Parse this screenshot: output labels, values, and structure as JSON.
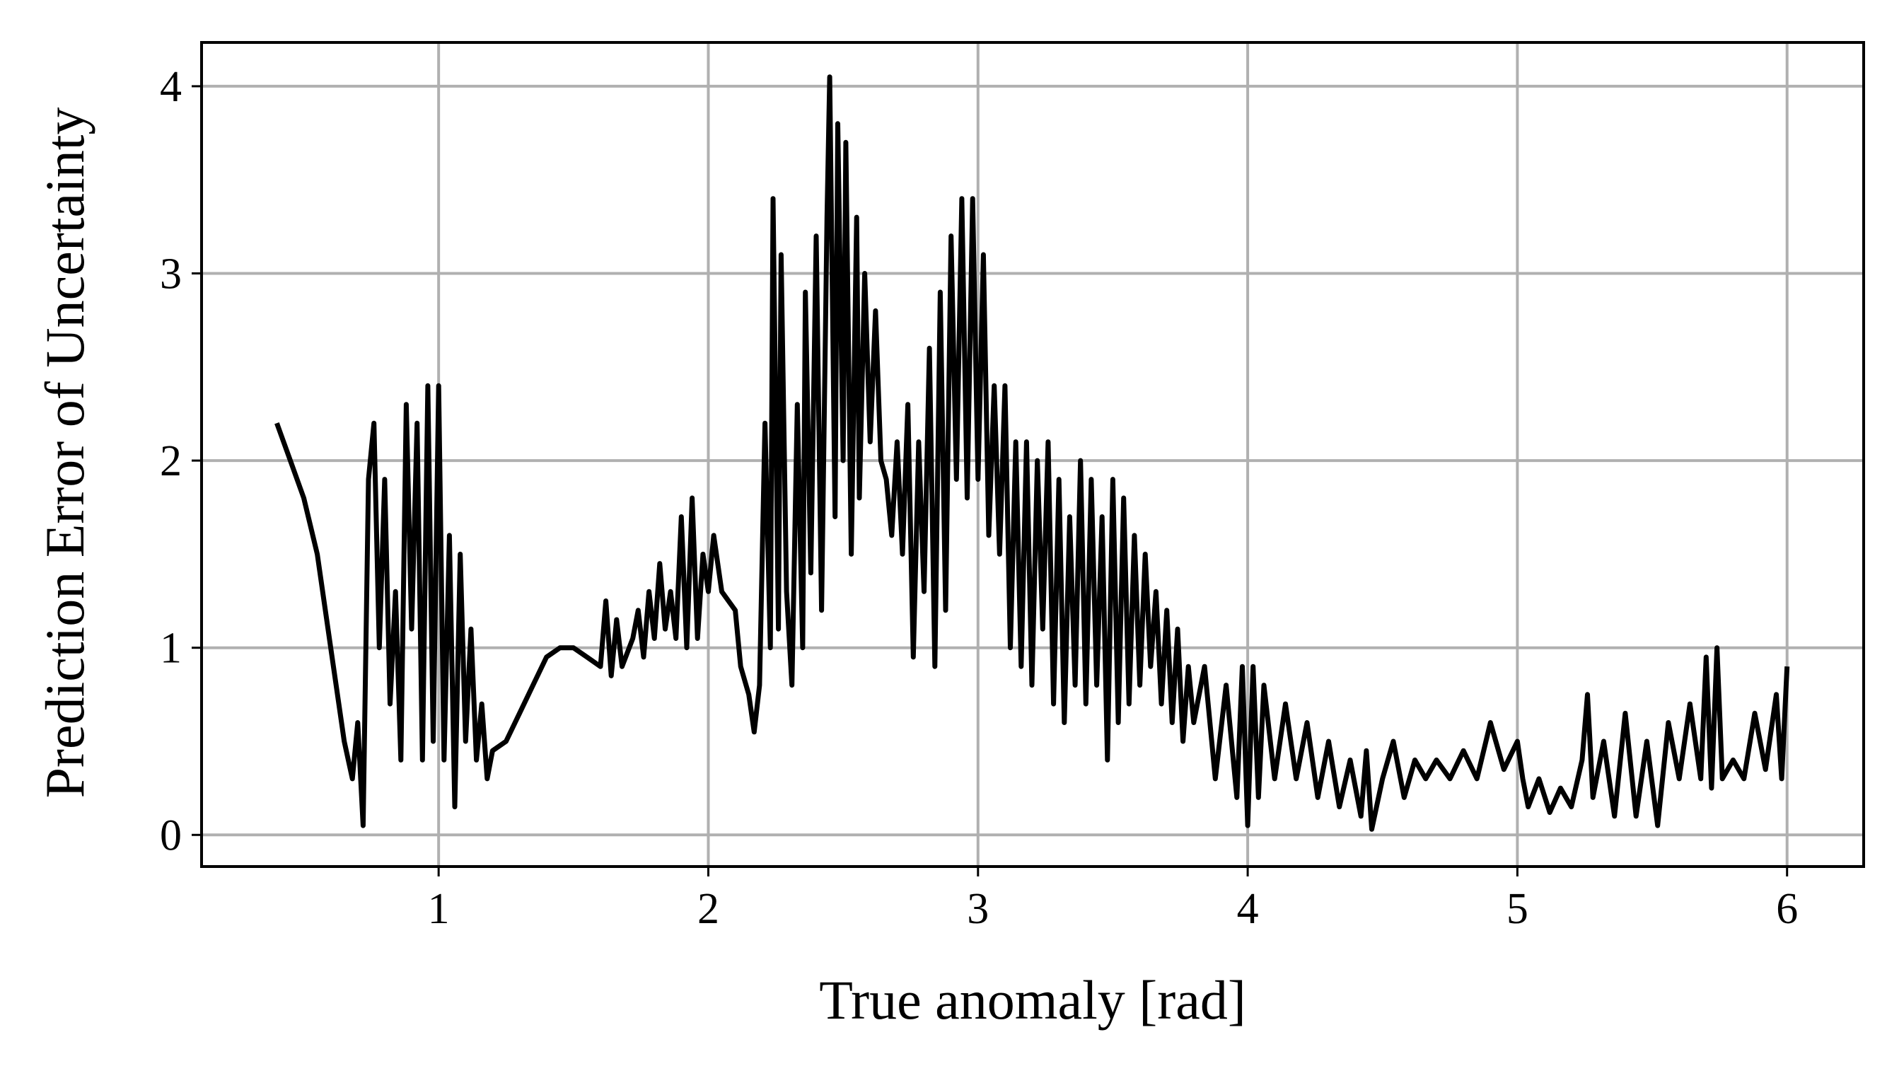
{
  "chart_data": {
    "type": "line",
    "xlabel": "True anomaly [rad]",
    "ylabel": "Prediction Error of Uncertainty",
    "color": "#000000",
    "grid": true,
    "xlim": [
      0.121,
      6.284
    ],
    "ylim": [
      -0.169,
      4.234
    ],
    "xticks": [
      1,
      2,
      3,
      4,
      5,
      6
    ],
    "yticks": [
      0,
      1,
      2,
      3,
      4
    ],
    "x": [
      0.4,
      0.45,
      0.5,
      0.55,
      0.6,
      0.65,
      0.68,
      0.7,
      0.72,
      0.74,
      0.76,
      0.78,
      0.8,
      0.82,
      0.84,
      0.86,
      0.88,
      0.9,
      0.92,
      0.94,
      0.96,
      0.98,
      1.0,
      1.02,
      1.04,
      1.06,
      1.08,
      1.1,
      1.12,
      1.14,
      1.16,
      1.18,
      1.2,
      1.25,
      1.3,
      1.35,
      1.4,
      1.45,
      1.5,
      1.55,
      1.6,
      1.62,
      1.64,
      1.66,
      1.68,
      1.72,
      1.74,
      1.76,
      1.78,
      1.8,
      1.82,
      1.84,
      1.86,
      1.88,
      1.9,
      1.92,
      1.94,
      1.96,
      1.98,
      2.0,
      2.02,
      2.05,
      2.1,
      2.12,
      2.15,
      2.17,
      2.19,
      2.21,
      2.23,
      2.24,
      2.26,
      2.27,
      2.29,
      2.31,
      2.33,
      2.35,
      2.36,
      2.38,
      2.4,
      2.42,
      2.44,
      2.45,
      2.47,
      2.48,
      2.5,
      2.51,
      2.53,
      2.55,
      2.56,
      2.58,
      2.6,
      2.62,
      2.64,
      2.66,
      2.68,
      2.7,
      2.72,
      2.74,
      2.76,
      2.78,
      2.8,
      2.82,
      2.84,
      2.86,
      2.88,
      2.9,
      2.92,
      2.94,
      2.96,
      2.98,
      3.0,
      3.02,
      3.04,
      3.06,
      3.08,
      3.1,
      3.12,
      3.14,
      3.16,
      3.18,
      3.2,
      3.22,
      3.24,
      3.26,
      3.28,
      3.3,
      3.32,
      3.34,
      3.36,
      3.38,
      3.4,
      3.42,
      3.44,
      3.46,
      3.48,
      3.5,
      3.52,
      3.54,
      3.56,
      3.58,
      3.6,
      3.62,
      3.64,
      3.66,
      3.68,
      3.7,
      3.72,
      3.74,
      3.76,
      3.78,
      3.8,
      3.84,
      3.88,
      3.92,
      3.96,
      3.98,
      4.0,
      4.02,
      4.04,
      4.06,
      4.1,
      4.14,
      4.18,
      4.22,
      4.26,
      4.3,
      4.34,
      4.38,
      4.42,
      4.44,
      4.46,
      4.5,
      4.54,
      4.58,
      4.62,
      4.66,
      4.7,
      4.75,
      4.8,
      4.85,
      4.9,
      4.95,
      5.0,
      5.02,
      5.04,
      5.08,
      5.12,
      5.16,
      5.2,
      5.24,
      5.26,
      5.28,
      5.32,
      5.36,
      5.4,
      5.44,
      5.48,
      5.52,
      5.56,
      5.6,
      5.64,
      5.68,
      5.7,
      5.72,
      5.74,
      5.76,
      5.8,
      5.84,
      5.88,
      5.92,
      5.96,
      5.98,
      6.0
    ],
    "values": [
      2.2,
      2.0,
      1.8,
      1.5,
      1.0,
      0.5,
      0.3,
      0.6,
      0.05,
      1.9,
      2.2,
      1.0,
      1.9,
      0.7,
      1.3,
      0.4,
      2.3,
      1.1,
      2.2,
      0.4,
      2.4,
      0.5,
      2.4,
      0.4,
      1.6,
      0.15,
      1.5,
      0.5,
      1.1,
      0.4,
      0.7,
      0.3,
      0.45,
      0.5,
      0.65,
      0.8,
      0.95,
      1.0,
      1.0,
      0.95,
      0.9,
      1.25,
      0.85,
      1.15,
      0.9,
      1.05,
      1.2,
      0.95,
      1.3,
      1.05,
      1.45,
      1.1,
      1.3,
      1.05,
      1.7,
      1.0,
      1.8,
      1.05,
      1.5,
      1.3,
      1.6,
      1.3,
      1.2,
      0.9,
      0.75,
      0.55,
      0.8,
      2.2,
      1.0,
      3.4,
      1.1,
      3.1,
      1.3,
      0.8,
      2.3,
      1.0,
      2.9,
      1.4,
      3.2,
      1.2,
      3.3,
      4.05,
      1.7,
      3.8,
      2.0,
      3.7,
      1.5,
      3.3,
      1.8,
      3.0,
      2.1,
      2.8,
      2.0,
      1.9,
      1.6,
      2.1,
      1.5,
      2.3,
      0.95,
      2.1,
      1.3,
      2.6,
      0.9,
      2.9,
      1.2,
      3.2,
      1.9,
      3.4,
      1.8,
      3.4,
      1.9,
      3.1,
      1.6,
      2.4,
      1.5,
      2.4,
      1.0,
      2.1,
      0.9,
      2.1,
      0.8,
      2.0,
      1.1,
      2.1,
      0.7,
      1.9,
      0.6,
      1.7,
      0.8,
      2.0,
      0.7,
      1.9,
      0.8,
      1.7,
      0.4,
      1.9,
      0.6,
      1.8,
      0.7,
      1.6,
      0.8,
      1.5,
      0.9,
      1.3,
      0.7,
      1.2,
      0.6,
      1.1,
      0.5,
      0.9,
      0.6,
      0.9,
      0.3,
      0.8,
      0.2,
      0.9,
      0.05,
      0.9,
      0.2,
      0.8,
      0.3,
      0.7,
      0.3,
      0.6,
      0.2,
      0.5,
      0.15,
      0.4,
      0.1,
      0.45,
      0.03,
      0.3,
      0.5,
      0.2,
      0.4,
      0.3,
      0.4,
      0.3,
      0.45,
      0.3,
      0.6,
      0.35,
      0.5,
      0.3,
      0.15,
      0.3,
      0.12,
      0.25,
      0.15,
      0.4,
      0.75,
      0.2,
      0.5,
      0.1,
      0.65,
      0.1,
      0.5,
      0.05,
      0.6,
      0.3,
      0.7,
      0.3,
      0.95,
      0.25,
      1.0,
      0.3,
      0.4,
      0.3,
      0.65,
      0.35,
      0.75,
      0.3,
      0.9
    ]
  }
}
